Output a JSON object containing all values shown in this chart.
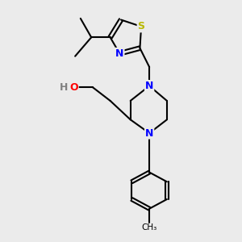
{
  "background_color": "#ebebeb",
  "bond_color": "#000000",
  "bond_width": 1.5,
  "atom_colors": {
    "N": "#0000ff",
    "O": "#ff0000",
    "S": "#b8b800",
    "C": "#000000",
    "H": "#808080"
  },
  "figsize": [
    3.0,
    3.0
  ],
  "dpi": 100
}
